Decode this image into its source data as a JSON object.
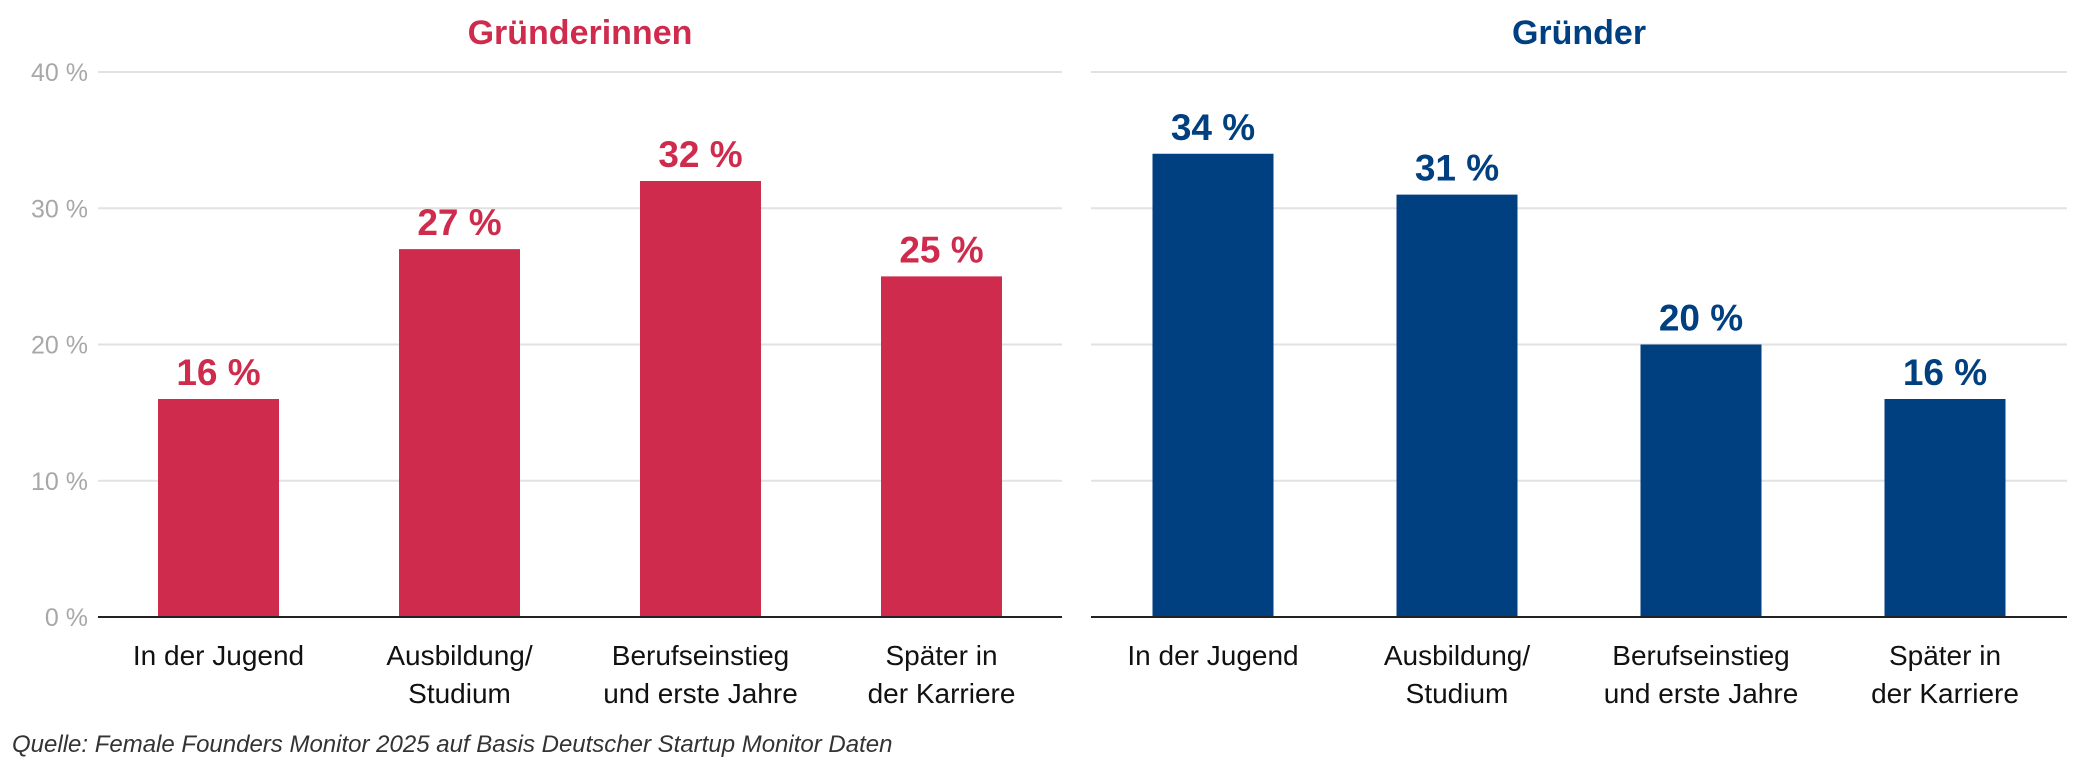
{
  "chart_data": [
    {
      "type": "bar",
      "title": "Gründerinnen",
      "categories": [
        [
          "In der Jugend"
        ],
        [
          "Ausbildung/",
          "Studium"
        ],
        [
          "Berufseinstieg",
          "und erste Jahre"
        ],
        [
          "Später in",
          "der Karriere"
        ]
      ],
      "values": [
        16,
        27,
        32,
        25
      ],
      "value_labels": [
        "16 %",
        "27 %",
        "32 %",
        "25 %"
      ],
      "color": "#cf2c4d",
      "ylim": [
        0,
        40
      ],
      "yticks": [
        0,
        10,
        20,
        30,
        40
      ],
      "ytick_labels": [
        "0 %",
        "10 %",
        "20 %",
        "30 %",
        "40 %"
      ],
      "grid": true
    },
    {
      "type": "bar",
      "title": "Gründer",
      "categories": [
        [
          "In der Jugend"
        ],
        [
          "Ausbildung/",
          "Studium"
        ],
        [
          "Berufseinstieg",
          "und erste Jahre"
        ],
        [
          "Später in",
          "der Karriere"
        ]
      ],
      "values": [
        34,
        31,
        20,
        16
      ],
      "value_labels": [
        "34 %",
        "31 %",
        "20 %",
        "16 %"
      ],
      "color": "#003f80",
      "ylim": [
        0,
        40
      ],
      "yticks": [
        0,
        10,
        20,
        30,
        40
      ],
      "grid": true
    }
  ],
  "source": "Quelle: Female Founders Monitor 2025 auf Basis Deutscher Startup Monitor Daten"
}
